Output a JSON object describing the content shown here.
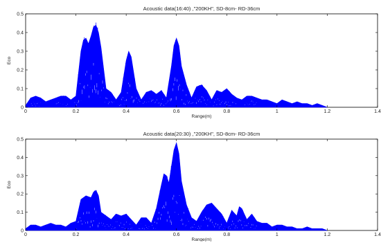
{
  "chart_data": [
    {
      "type": "area",
      "title": "Acoustic data(16:40) ,\"200KH\", SD-8cm- RD-36cm",
      "xlabel": "Range(m)",
      "ylabel": "Eco",
      "xlim": [
        0,
        1.4
      ],
      "ylim": [
        0,
        0.5
      ],
      "xticks": [
        "0",
        "0.2",
        "0.4",
        "0.6",
        "0.8",
        "1",
        "1.2",
        "1.4"
      ],
      "yticks": [
        "0",
        "0.1",
        "0.2",
        "0.3",
        "0.4",
        "0.5"
      ],
      "grid": false,
      "color": "#0000ff",
      "envelope": {
        "x": [
          0,
          0.02,
          0.04,
          0.06,
          0.08,
          0.1,
          0.12,
          0.14,
          0.16,
          0.18,
          0.2,
          0.22,
          0.23,
          0.24,
          0.25,
          0.26,
          0.27,
          0.28,
          0.29,
          0.3,
          0.32,
          0.34,
          0.36,
          0.38,
          0.4,
          0.41,
          0.42,
          0.44,
          0.46,
          0.48,
          0.5,
          0.52,
          0.54,
          0.56,
          0.58,
          0.59,
          0.6,
          0.61,
          0.62,
          0.64,
          0.66,
          0.68,
          0.7,
          0.72,
          0.74,
          0.76,
          0.78,
          0.8,
          0.82,
          0.84,
          0.86,
          0.88,
          0.9,
          0.92,
          0.94,
          0.96,
          0.98,
          1.0,
          1.02,
          1.04,
          1.06,
          1.08,
          1.1,
          1.12,
          1.14,
          1.16,
          1.18,
          1.2
        ],
        "y": [
          0.01,
          0.05,
          0.06,
          0.05,
          0.03,
          0.04,
          0.05,
          0.06,
          0.06,
          0.04,
          0.06,
          0.3,
          0.36,
          0.37,
          0.34,
          0.38,
          0.43,
          0.44,
          0.4,
          0.32,
          0.1,
          0.08,
          0.04,
          0.08,
          0.25,
          0.3,
          0.27,
          0.1,
          0.04,
          0.08,
          0.09,
          0.07,
          0.09,
          0.05,
          0.22,
          0.33,
          0.37,
          0.33,
          0.22,
          0.12,
          0.05,
          0.11,
          0.12,
          0.09,
          0.04,
          0.09,
          0.08,
          0.1,
          0.07,
          0.05,
          0.04,
          0.06,
          0.06,
          0.05,
          0.04,
          0.04,
          0.03,
          0.02,
          0.04,
          0.03,
          0.02,
          0.03,
          0.02,
          0.02,
          0.01,
          0.02,
          0.01,
          0.0
        ]
      }
    },
    {
      "type": "area",
      "title": "Acoustic data(20:30) ,\"200KH\", SD-8cm- RD-36cm",
      "xlabel": "Range(m)",
      "ylabel": "Eco",
      "xlim": [
        0,
        1.4
      ],
      "ylim": [
        0,
        0.5
      ],
      "xticks": [
        "0",
        "0.2",
        "0.4",
        "0.6",
        "0.8",
        "1",
        "1.2",
        "1.4"
      ],
      "yticks": [
        "0",
        "0.1",
        "0.2",
        "0.3",
        "0.4",
        "0.5"
      ],
      "grid": false,
      "color": "#0000ff",
      "envelope": {
        "x": [
          0,
          0.02,
          0.04,
          0.06,
          0.08,
          0.1,
          0.12,
          0.14,
          0.16,
          0.18,
          0.2,
          0.22,
          0.24,
          0.26,
          0.27,
          0.28,
          0.29,
          0.3,
          0.32,
          0.34,
          0.36,
          0.38,
          0.4,
          0.42,
          0.44,
          0.46,
          0.48,
          0.5,
          0.52,
          0.54,
          0.55,
          0.56,
          0.57,
          0.58,
          0.59,
          0.6,
          0.61,
          0.62,
          0.64,
          0.66,
          0.68,
          0.7,
          0.72,
          0.74,
          0.76,
          0.78,
          0.8,
          0.82,
          0.84,
          0.85,
          0.86,
          0.88,
          0.9,
          0.92,
          0.94,
          0.96,
          0.98,
          1.0,
          1.02,
          1.04,
          1.06,
          1.08,
          1.1,
          1.12,
          1.14,
          1.16,
          1.18,
          1.2
        ],
        "y": [
          0.01,
          0.03,
          0.03,
          0.02,
          0.03,
          0.04,
          0.03,
          0.03,
          0.02,
          0.04,
          0.05,
          0.17,
          0.19,
          0.18,
          0.21,
          0.22,
          0.19,
          0.1,
          0.08,
          0.06,
          0.09,
          0.08,
          0.09,
          0.06,
          0.03,
          0.07,
          0.07,
          0.04,
          0.12,
          0.25,
          0.31,
          0.3,
          0.26,
          0.35,
          0.44,
          0.48,
          0.42,
          0.27,
          0.14,
          0.07,
          0.05,
          0.1,
          0.14,
          0.15,
          0.12,
          0.09,
          0.04,
          0.11,
          0.08,
          0.13,
          0.12,
          0.06,
          0.09,
          0.05,
          0.04,
          0.04,
          0.02,
          0.03,
          0.03,
          0.02,
          0.02,
          0.01,
          0.01,
          0.02,
          0.01,
          0.01,
          0.01,
          0.0
        ]
      }
    }
  ]
}
